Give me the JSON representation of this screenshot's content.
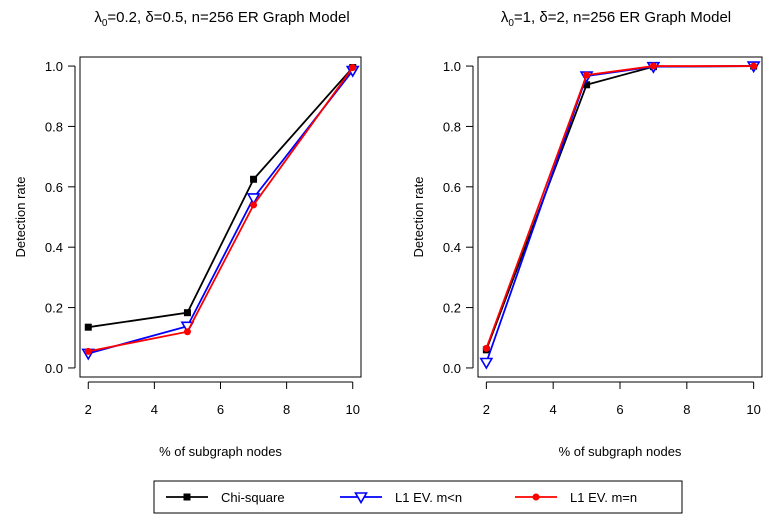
{
  "chart_data": [
    {
      "type": "line",
      "title": {
        "pre": "λ",
        "sub": "0",
        "post": "=0.2, δ=0.5, n=256 ER Graph Model"
      },
      "xlabel": "% of subgraph nodes",
      "ylabel": "Detection rate",
      "x": [
        2,
        5,
        7,
        10
      ],
      "xlim": [
        1.75,
        10.25
      ],
      "ylim": [
        -0.03,
        1.03
      ],
      "xticks": [
        2,
        4,
        6,
        8,
        10
      ],
      "yticks": [
        0.0,
        0.2,
        0.4,
        0.6,
        0.8,
        1.0
      ],
      "ytick_labels": [
        "0.0",
        "0.2",
        "0.4",
        "0.6",
        "0.8",
        "1.0"
      ],
      "grid": false,
      "series": [
        {
          "name": "Chi-square",
          "values": [
            0.135,
            0.183,
            0.625,
            0.995
          ]
        },
        {
          "name": "L1 EV. m<n",
          "values": [
            0.048,
            0.138,
            0.563,
            0.985
          ]
        },
        {
          "name": "L1 EV. m=n",
          "values": [
            0.055,
            0.12,
            0.54,
            0.995
          ]
        }
      ]
    },
    {
      "type": "line",
      "title": {
        "pre": "λ",
        "sub": "0",
        "post": "=1, δ=2, n=256 ER Graph Model"
      },
      "xlabel": "% of subgraph nodes",
      "ylabel": "Detection rate",
      "x": [
        2,
        5,
        7,
        10
      ],
      "xlim": [
        1.75,
        10.25
      ],
      "ylim": [
        -0.03,
        1.03
      ],
      "xticks": [
        2,
        4,
        6,
        8,
        10
      ],
      "yticks": [
        0.0,
        0.2,
        0.4,
        0.6,
        0.8,
        1.0
      ],
      "ytick_labels": [
        "0.0",
        "0.2",
        "0.4",
        "0.6",
        "0.8",
        "1.0"
      ],
      "grid": false,
      "series": [
        {
          "name": "Chi-square",
          "values": [
            0.06,
            0.938,
            0.998,
            1.0
          ]
        },
        {
          "name": "L1 EV. m<n",
          "values": [
            0.018,
            0.967,
            0.998,
            1.0
          ]
        },
        {
          "name": "L1 EV. m=n",
          "values": [
            0.065,
            0.97,
            1.0,
            1.0
          ]
        }
      ]
    }
  ],
  "legend": {
    "placement": "bottom",
    "entries": [
      {
        "name": "Chi-square",
        "color": "#000000",
        "marker": "square"
      },
      {
        "name": "L1 EV. m<n",
        "color": "#0000ff",
        "marker": "triangle-down-open"
      },
      {
        "name": "L1 EV. m=n",
        "color": "#ff0000",
        "marker": "circle"
      }
    ]
  }
}
